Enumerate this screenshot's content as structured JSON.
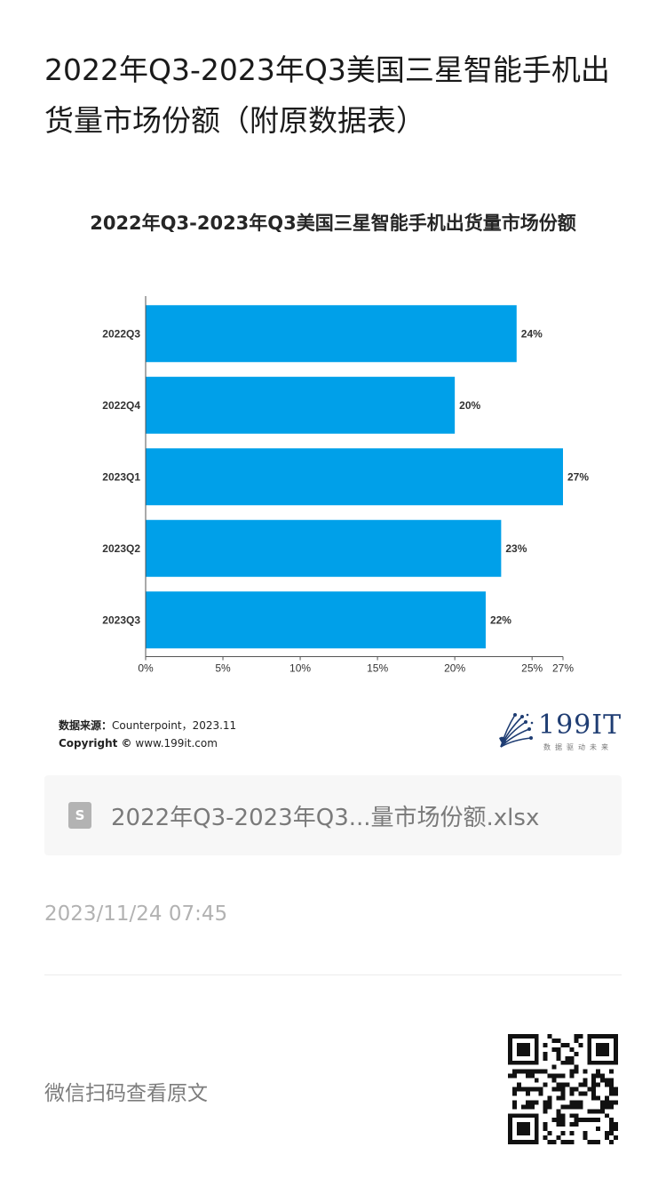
{
  "article": {
    "title": "2022年Q3-2023年Q3美国三星智能手机出货量市场份额（附原数据表）"
  },
  "chart_data": {
    "type": "bar",
    "orientation": "horizontal",
    "title": "2022年Q3-2023年Q3美国三星智能手机出货量市场份额",
    "categories": [
      "2022Q3",
      "2022Q4",
      "2023Q1",
      "2023Q2",
      "2023Q3"
    ],
    "values": [
      24,
      20,
      27,
      23,
      22
    ],
    "value_labels": [
      "24%",
      "20%",
      "27%",
      "23%",
      "22%"
    ],
    "x_ticks": [
      0,
      5,
      10,
      15,
      20,
      25,
      27
    ],
    "x_tick_labels": [
      "0%",
      "5%",
      "10%",
      "15%",
      "20%",
      "25%",
      "27%"
    ],
    "xlim": [
      0,
      27
    ],
    "bar_color": "#00a0e9",
    "grid": false,
    "xlabel": "",
    "ylabel": ""
  },
  "source": {
    "label": "数据来源：",
    "text": "Counterpoint，2023.11",
    "copyright_label": "Copyright ©",
    "copyright_text": "www.199it.com"
  },
  "brand": {
    "name": "199IT",
    "tagline": "数据驱动未来",
    "color": "#1f3d73"
  },
  "attachment": {
    "icon": "file-s-icon",
    "icon_letter": "S",
    "filename": "2022年Q3-2023年Q3...量市场份额.xlsx"
  },
  "meta": {
    "timestamp": "2023/11/24 07:45"
  },
  "footer": {
    "qr_hint": "微信扫码查看原文",
    "qr_icon": "qr-code-icon"
  }
}
